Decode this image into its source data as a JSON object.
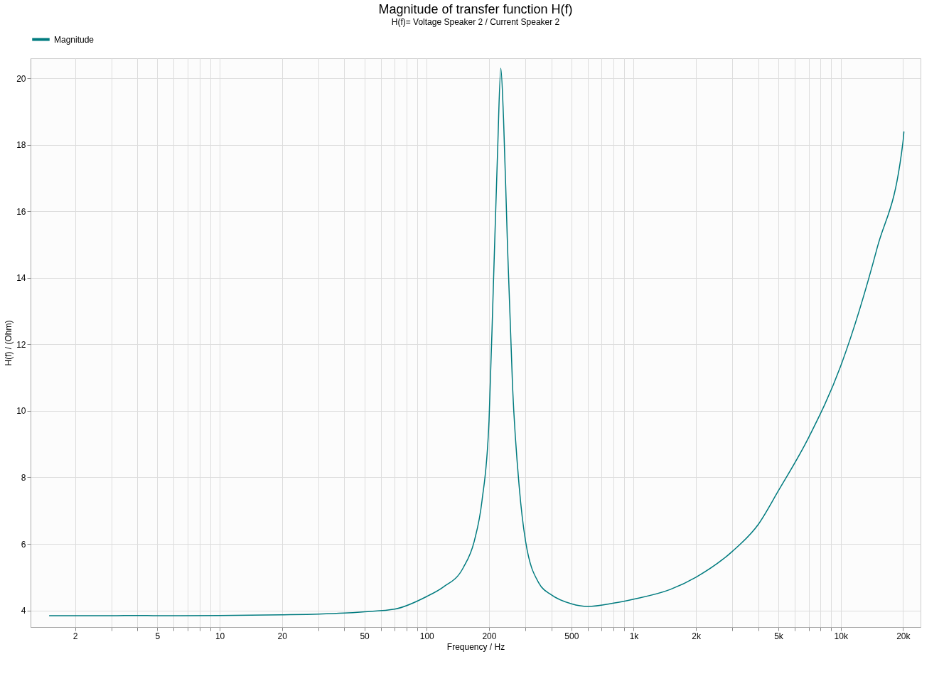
{
  "chart_data": {
    "type": "line",
    "title": "Magnitude of transfer function H(f)",
    "subtitle": "H(f)= Voltage Speaker 2 / Current Speaker 2",
    "xlabel": "Frequency / Hz",
    "ylabel": "H(f) / (Ohm)",
    "log": "x",
    "grid": true,
    "legend": "top left",
    "line_style": "solid",
    "marker": "none",
    "xlim": [
      1.22,
      24300
    ],
    "ylim": [
      3.5,
      20.6
    ],
    "xticks": [
      2,
      {
        "value": 3,
        "label": null
      },
      {
        "value": 4,
        "label": null
      },
      5,
      {
        "value": 6,
        "label": null
      },
      {
        "value": 7,
        "label": null
      },
      {
        "value": 8,
        "label": null
      },
      {
        "value": 9,
        "label": null
      },
      10,
      20,
      {
        "value": 30,
        "label": null
      },
      {
        "value": 40,
        "label": null
      },
      50,
      {
        "value": 60,
        "label": null
      },
      {
        "value": 70,
        "label": null
      },
      {
        "value": 80,
        "label": null
      },
      {
        "value": 90,
        "label": null
      },
      100,
      200,
      {
        "value": 300,
        "label": null
      },
      {
        "value": 400,
        "label": null
      },
      500,
      {
        "value": 600,
        "label": null
      },
      {
        "value": 700,
        "label": null
      },
      {
        "value": 800,
        "label": null
      },
      {
        "value": 900,
        "label": null
      },
      {
        "value": 1000,
        "label": "1k"
      },
      {
        "value": 2000,
        "label": "2k"
      },
      {
        "value": 3000,
        "label": null
      },
      {
        "value": 4000,
        "label": null
      },
      {
        "value": 5000,
        "label": "5k"
      },
      {
        "value": 6000,
        "label": null
      },
      {
        "value": 7000,
        "label": null
      },
      {
        "value": 8000,
        "label": null
      },
      {
        "value": 9000,
        "label": null
      },
      {
        "value": 10000,
        "label": "10k"
      },
      {
        "value": 20000,
        "label": "20k"
      }
    ],
    "yticks": [
      4,
      6,
      8,
      10,
      12,
      14,
      16,
      18,
      20
    ],
    "series": [
      {
        "name": "Magnitude",
        "color": "#007b7f",
        "x": [
          1.5,
          3,
          4,
          5,
          10,
          20,
          30,
          40,
          50,
          70,
          100,
          120,
          150,
          170,
          185,
          200,
          210,
          220,
          228,
          235,
          245,
          260,
          280,
          300,
          350,
          400,
          500,
          600,
          800,
          1000,
          1500,
          2000,
          3000,
          4000,
          5000,
          7000,
          10000,
          15000,
          20000,
          20200
        ],
        "values": [
          3.84,
          3.84,
          3.85,
          3.84,
          3.85,
          3.87,
          3.89,
          3.92,
          3.96,
          4.04,
          4.42,
          4.7,
          5.28,
          6.1,
          7.3,
          9.7,
          13.8,
          17.8,
          20.3,
          18.8,
          15.2,
          10.7,
          7.7,
          6.1,
          4.8,
          4.47,
          4.2,
          4.12,
          4.22,
          4.34,
          4.63,
          5.0,
          5.78,
          6.59,
          7.6,
          9.2,
          11.35,
          14.9,
          18.1,
          18.4
        ]
      }
    ]
  }
}
